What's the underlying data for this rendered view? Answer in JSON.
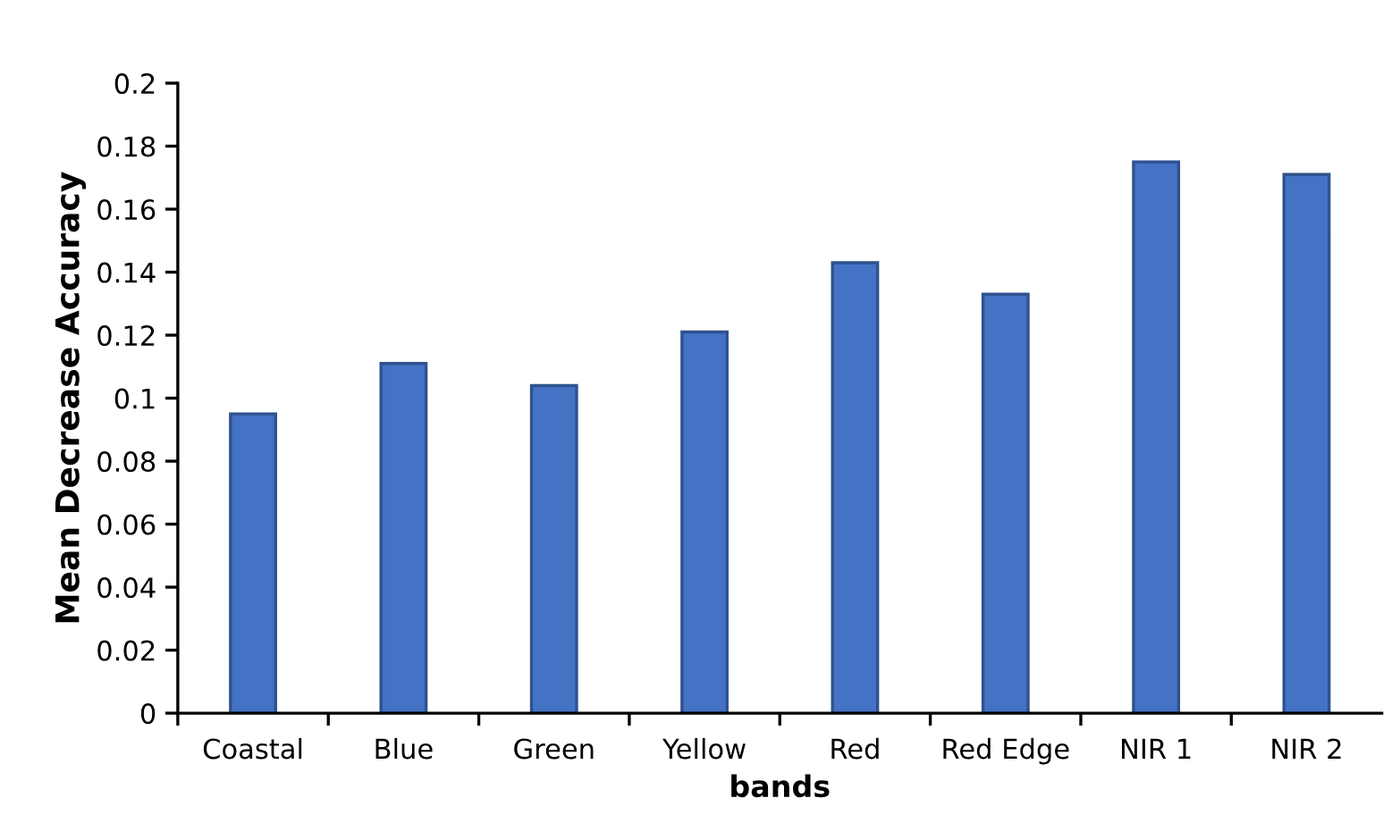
{
  "chart_data": {
    "type": "bar",
    "categories": [
      "Coastal",
      "Blue",
      "Green",
      "Yellow",
      "Red",
      "Red Edge",
      "NIR 1",
      "NIR 2"
    ],
    "values": [
      0.095,
      0.111,
      0.104,
      0.121,
      0.143,
      0.133,
      0.175,
      0.171
    ],
    "color": "#4472c4",
    "xlabel": "bands",
    "ylabel": "Mean Decrease Accuracy",
    "ylim": [
      0,
      0.2
    ],
    "yticks": [
      0,
      0.02,
      0.04,
      0.06,
      0.08,
      0.1,
      0.12,
      0.14,
      0.16,
      0.18,
      0.2
    ],
    "grid": false,
    "legend": false
  }
}
